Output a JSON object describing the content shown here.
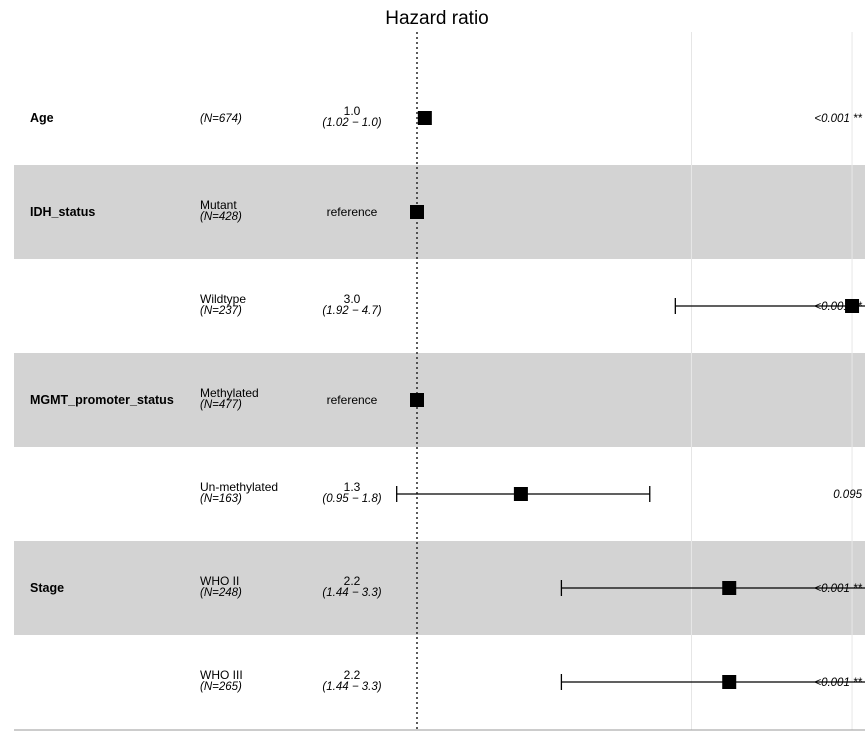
{
  "chart_data": {
    "type": "forest",
    "title": "Hazard ratio",
    "x_scale": "log",
    "xlim": [
      0.95,
      5.6
    ],
    "reference_line": 1.0,
    "rows": [
      {
        "variable": "Age",
        "level": "",
        "n": "(N=674)",
        "hr_label": "1.0",
        "ci_label": "(1.02 − 1.0)",
        "hr": 1.02,
        "ci_low": 1.02,
        "ci_high": 1.02,
        "p": "<0.001 **",
        "shaded": false
      },
      {
        "variable": "IDH_status",
        "level": "Mutant",
        "n": "(N=428)",
        "hr_label": "reference",
        "ci_label": "",
        "hr": 1.0,
        "ci_low": null,
        "ci_high": null,
        "p": "",
        "shaded": true
      },
      {
        "variable": "",
        "level": "Wildtype",
        "n": "(N=237)",
        "hr_label": "3.0",
        "ci_label": "(1.92 − 4.7)",
        "hr": 3.0,
        "ci_low": 1.92,
        "ci_high": 4.7,
        "p": "<0.001 **",
        "shaded": false
      },
      {
        "variable": "MGMT_promoter_status",
        "level": "Methylated",
        "n": "(N=477)",
        "hr_label": "reference",
        "ci_label": "",
        "hr": 1.0,
        "ci_low": null,
        "ci_high": null,
        "p": "",
        "shaded": true
      },
      {
        "variable": "",
        "level": "Un-methylated",
        "n": "(N=163)",
        "hr_label": "1.3",
        "ci_label": "(0.95 − 1.8)",
        "hr": 1.3,
        "ci_low": 0.95,
        "ci_high": 1.8,
        "p": "0.095",
        "shaded": false
      },
      {
        "variable": "Stage",
        "level": "WHO II",
        "n": "(N=248)",
        "hr_label": "2.2",
        "ci_label": "(1.44 − 3.3)",
        "hr": 2.2,
        "ci_low": 1.44,
        "ci_high": 3.3,
        "p": "<0.001 **",
        "shaded": true
      },
      {
        "variable": "",
        "level": "WHO III",
        "n": "(N=265)",
        "hr_label": "2.2",
        "ci_label": "(1.44 − 3.3)",
        "hr": 2.2,
        "ci_low": 1.44,
        "ci_high": 3.3,
        "p": "<0.001 **",
        "shaded": false
      }
    ],
    "grid_x": [
      2,
      3,
      4,
      5
    ],
    "grid": true,
    "colors": {
      "shade": "#d3d3d3",
      "marker": "#000000",
      "grid": "#e6e6e6"
    }
  }
}
